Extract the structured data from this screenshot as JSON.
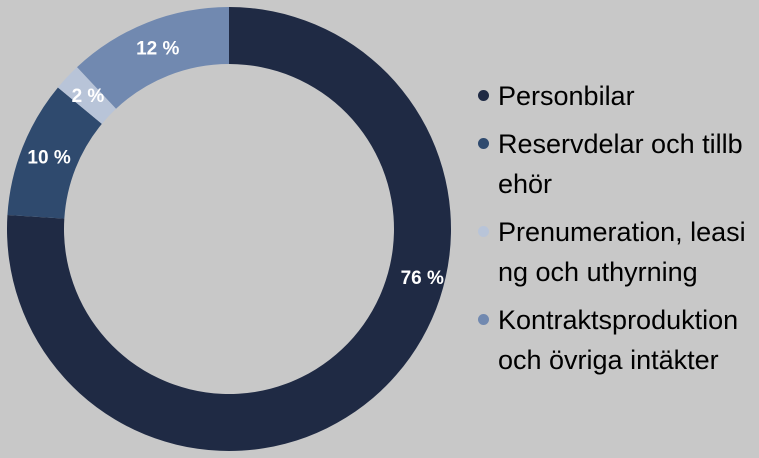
{
  "chart_data": {
    "type": "pie",
    "variant": "donut",
    "title": "",
    "labels": [
      "Personbilar",
      "Reservdelar och tillbehör",
      "Prenumeration, leasing och uthyrning",
      "Kontraktsproduktion och övriga intäkter"
    ],
    "values": [
      76,
      10,
      2,
      12
    ],
    "value_labels": [
      "76 %",
      "10 %",
      "2 %",
      "12 %"
    ],
    "colors": [
      "#1f2a44",
      "#2f4a6e",
      "#b8c4d8",
      "#7189b0"
    ],
    "direction": "clockwise from top",
    "legend_position": "right"
  },
  "background_color": "#c8c8c8",
  "label_color": "#ffffff"
}
